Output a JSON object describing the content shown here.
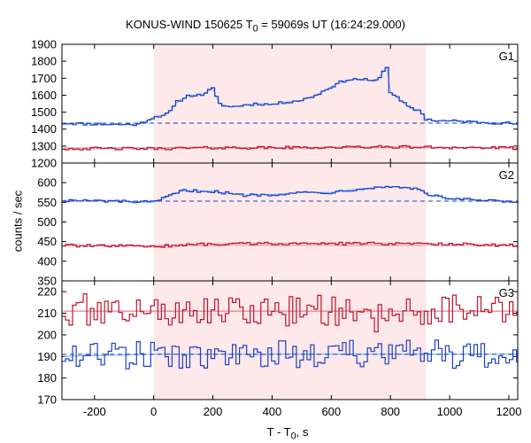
{
  "chart_data": {
    "type": "line",
    "title_main": "KONUS-WIND 150625 T",
    "title_sub": "0",
    "title_rest": " = 59069s UT (16:24:29.000)",
    "xlabel_main": "T - T",
    "xlabel_sub": "0",
    "xlabel_rest": ", s",
    "ylabel": "counts / sec",
    "xlim": [
      -310,
      1230
    ],
    "x_ticks": [
      -200,
      0,
      200,
      400,
      600,
      800,
      1000,
      1200
    ],
    "x_tick_labels": [
      "-200",
      "0",
      "200",
      "400",
      "600",
      "800",
      "1000",
      "1200"
    ],
    "shaded_interval": [
      0,
      920
    ],
    "shade_color": "#fde8ea",
    "grid": false,
    "panels": [
      {
        "label": "G1",
        "ylim": [
          1200,
          1900
        ],
        "y_ticks": [
          1200,
          1300,
          1400,
          1500,
          1600,
          1700,
          1800,
          1900
        ],
        "y_tick_labels": [
          "1200",
          "1300",
          "1400",
          "1500",
          "1600",
          "1700",
          "1800",
          "1900"
        ],
        "show_bottom_tick": true,
        "series": [
          {
            "color": "#1f3fc8",
            "fit_color": "#5ab4ff",
            "background_level": 1435,
            "background_style": "dashed",
            "points": [
              [
                -310,
                1435
              ],
              [
                -250,
                1432
              ],
              [
                -200,
                1430
              ],
              [
                -150,
                1428
              ],
              [
                -100,
                1427
              ],
              [
                -50,
                1428
              ],
              [
                0,
                1470
              ],
              [
                50,
                1490
              ],
              [
                80,
                1560
              ],
              [
                120,
                1600
              ],
              [
                160,
                1600
              ],
              [
                200,
                1640
              ],
              [
                220,
                1550
              ],
              [
                260,
                1530
              ],
              [
                300,
                1540
              ],
              [
                350,
                1550
              ],
              [
                400,
                1545
              ],
              [
                450,
                1560
              ],
              [
                500,
                1570
              ],
              [
                550,
                1600
              ],
              [
                600,
                1650
              ],
              [
                650,
                1690
              ],
              [
                700,
                1695
              ],
              [
                750,
                1680
              ],
              [
                790,
                1770
              ],
              [
                800,
                1620
              ],
              [
                840,
                1560
              ],
              [
                870,
                1520
              ],
              [
                900,
                1510
              ],
              [
                920,
                1460
              ],
              [
                950,
                1450
              ],
              [
                1000,
                1448
              ],
              [
                1050,
                1445
              ],
              [
                1100,
                1440
              ],
              [
                1150,
                1438
              ],
              [
                1200,
                1435
              ],
              [
                1230,
                1430
              ]
            ]
          },
          {
            "color": "#c0142e",
            "fit_color": "#ff8fa0",
            "background_level": 1290,
            "points": [
              [
                -310,
                1285
              ],
              [
                0,
                1285
              ],
              [
                200,
                1290
              ],
              [
                400,
                1290
              ],
              [
                600,
                1292
              ],
              [
                800,
                1295
              ],
              [
                1000,
                1292
              ],
              [
                1230,
                1288
              ]
            ]
          }
        ]
      },
      {
        "label": "G2",
        "ylim": [
          350,
          650
        ],
        "y_ticks": [
          350,
          400,
          450,
          500,
          550,
          600
        ],
        "y_tick_labels": [
          "350",
          "400",
          "450",
          "500",
          "550",
          "600"
        ],
        "show_bottom_tick": true,
        "series": [
          {
            "color": "#1f3fc8",
            "fit_color": "#5ab4ff",
            "background_level": 553,
            "background_style": "dashed",
            "points": [
              [
                -310,
                555
              ],
              [
                -150,
                553
              ],
              [
                0,
                550
              ],
              [
                100,
                580
              ],
              [
                200,
                578
              ],
              [
                300,
                568
              ],
              [
                400,
                570
              ],
              [
                500,
                575
              ],
              [
                600,
                575
              ],
              [
                700,
                585
              ],
              [
                800,
                590
              ],
              [
                900,
                585
              ],
              [
                920,
                570
              ],
              [
                1000,
                560
              ],
              [
                1100,
                555
              ],
              [
                1230,
                550
              ]
            ]
          },
          {
            "color": "#c0142e",
            "fit_color": "#ff8fa0",
            "background_level": 440,
            "points": [
              [
                -310,
                440
              ],
              [
                0,
                438
              ],
              [
                200,
                444
              ],
              [
                400,
                445
              ],
              [
                600,
                445
              ],
              [
                800,
                445
              ],
              [
                1000,
                444
              ],
              [
                1230,
                440
              ]
            ]
          }
        ]
      },
      {
        "label": "G3",
        "ylim": [
          170,
          225
        ],
        "y_ticks": [
          170,
          180,
          190,
          200,
          210,
          220
        ],
        "y_tick_labels": [
          "170",
          "180",
          "190",
          "200",
          "210",
          "220"
        ],
        "show_bottom_tick": true,
        "series": [
          {
            "color": "#c0142e",
            "fit_color": "#ff8fa0",
            "background_level": 211,
            "points": [
              [
                -310,
                211
              ],
              [
                0,
                211
              ],
              [
                300,
                211
              ],
              [
                600,
                211
              ],
              [
                900,
                211
              ],
              [
                1230,
                211
              ]
            ]
          },
          {
            "color": "#1f3fc8",
            "fit_color": "#5ab4ff",
            "background_level": 191,
            "background_style": "dashed",
            "points": [
              [
                -310,
                190
              ],
              [
                0,
                191
              ],
              [
                300,
                191
              ],
              [
                600,
                191
              ],
              [
                900,
                191
              ],
              [
                1230,
                191
              ]
            ]
          }
        ]
      }
    ]
  }
}
